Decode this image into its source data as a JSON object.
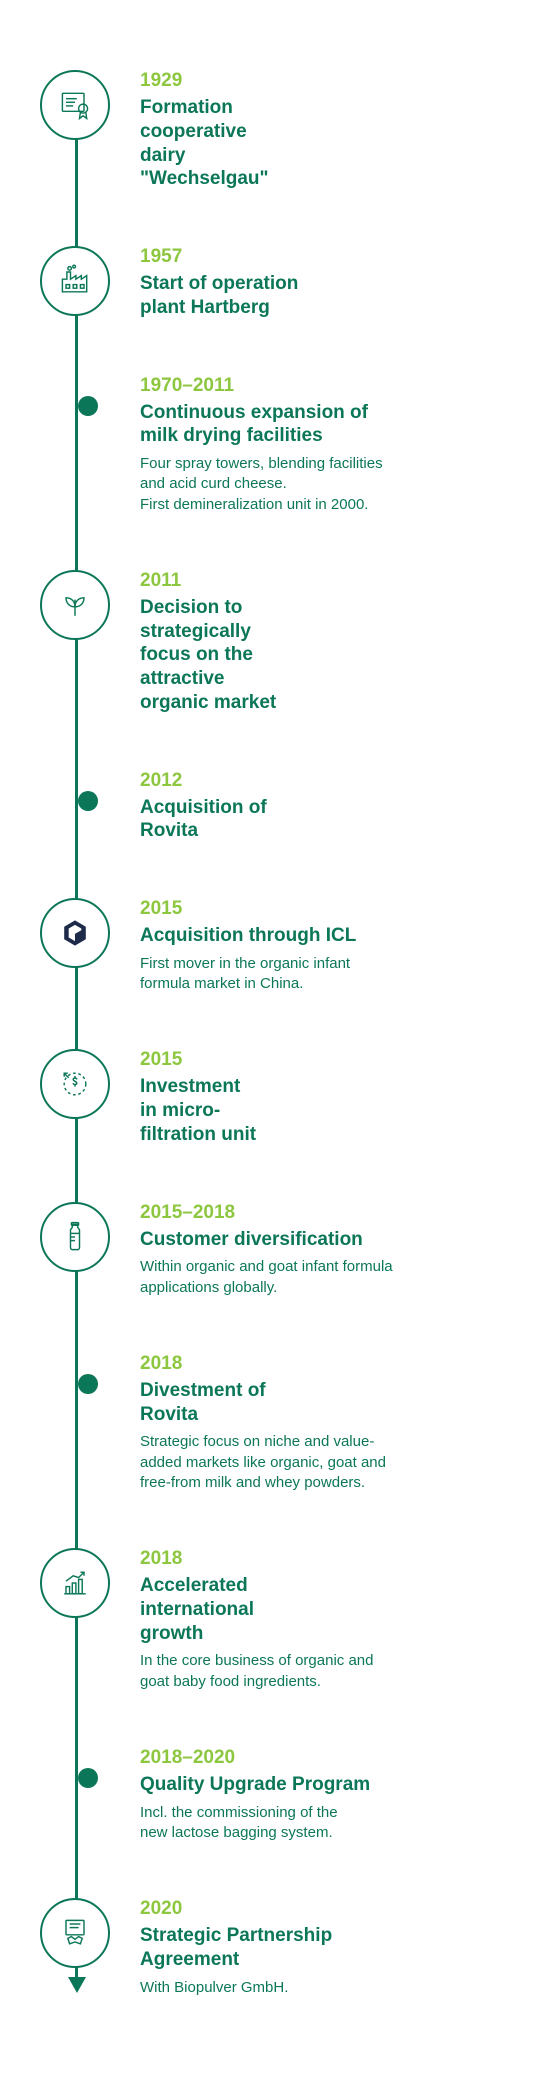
{
  "colors": {
    "accent_year": "#8dc63f",
    "primary": "#0c7758",
    "icl_dark": "#1e2a4a",
    "background": "#ffffff"
  },
  "timeline": [
    {
      "marker": "icon",
      "icon": "certificate",
      "year": "1929",
      "title": "Formation cooperative dairy \"Wechselgau\"",
      "desc": ""
    },
    {
      "marker": "icon",
      "icon": "factory",
      "year": "1957",
      "title": "Start of operation plant Hartberg",
      "desc": ""
    },
    {
      "marker": "dot",
      "year": "1970–2011",
      "title": "Continuous expansion of milk drying facilities",
      "desc": "Four spray towers, blending facilities and acid curd cheese.\nFirst demineralization unit in 2000."
    },
    {
      "marker": "icon",
      "icon": "leaf",
      "year": "2011",
      "title": "Decision to strategically focus on the attractive organic market",
      "desc": ""
    },
    {
      "marker": "dot",
      "year": "2012",
      "title": "Acquisition of Rovita",
      "desc": ""
    },
    {
      "marker": "icon",
      "icon": "icl",
      "year": "2015",
      "title": "Acquisition through ICL",
      "desc": "First mover in the organic infant formula market in China."
    },
    {
      "marker": "icon",
      "icon": "dollar",
      "year": "2015",
      "title": "Investment in micro-filtration unit",
      "desc": ""
    },
    {
      "marker": "icon",
      "icon": "bottle",
      "year": "2015–2018",
      "title": "Customer diversification",
      "desc": "Within organic and goat infant formula applications globally."
    },
    {
      "marker": "dot",
      "year": "2018",
      "title": "Divestment of Rovita",
      "desc": "Strategic focus on niche and value-added markets like organic, goat and free-from milk and whey powders."
    },
    {
      "marker": "icon",
      "icon": "growth",
      "year": "2018",
      "title": "Accelerated international growth",
      "desc": "In the core business of organic and goat baby food ingredients."
    },
    {
      "marker": "dot",
      "year": "2018–2020",
      "title": "Quality Upgrade Program",
      "desc": "Incl. the commissioning of the new lactose bagging system."
    },
    {
      "marker": "icon",
      "icon": "handshake",
      "year": "2020",
      "title": "Strategic Partnership Agreement",
      "desc": "With Biopulver GmbH."
    }
  ],
  "title_widths_ch": [
    14,
    18,
    24,
    13,
    14,
    100,
    11,
    100,
    14,
    14,
    100,
    22
  ],
  "desc_widths_ch": [
    100,
    100,
    30,
    100,
    100,
    28,
    100,
    32,
    30,
    30,
    26,
    100
  ]
}
